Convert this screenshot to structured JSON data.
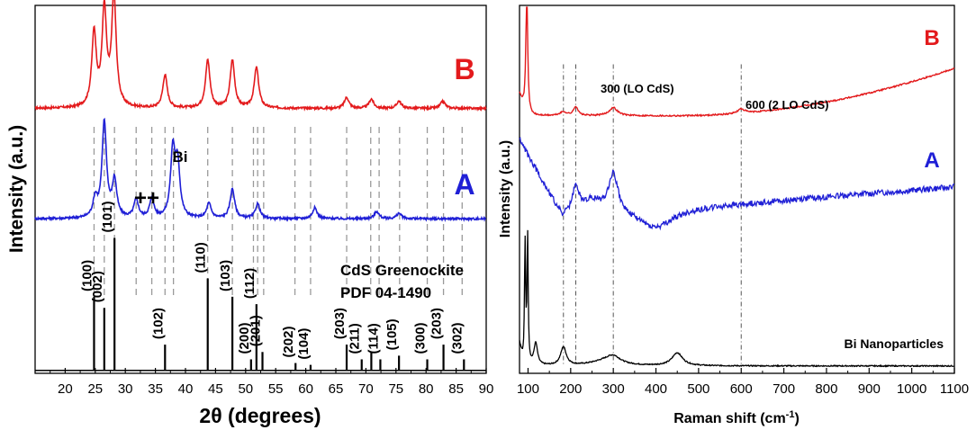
{
  "chart_data": [
    {
      "type": "line",
      "panel": "left",
      "title": "",
      "xlabel": "2θ (degrees)",
      "ylabel": "Intensity (a.u.)",
      "xlim": [
        15,
        90
      ],
      "xticks": [
        20,
        25,
        30,
        35,
        40,
        45,
        50,
        55,
        60,
        65,
        70,
        75,
        80,
        85,
        90
      ],
      "series": [
        {
          "name": "B",
          "color": "#e31a1c",
          "baseline": 0.72,
          "peaks": [
            [
              24.8,
              0.2
            ],
            [
              26.5,
              0.26
            ],
            [
              28.1,
              0.3
            ],
            [
              36.6,
              0.09
            ],
            [
              43.7,
              0.13
            ],
            [
              47.8,
              0.13
            ],
            [
              51.8,
              0.11
            ],
            [
              66.8,
              0.03
            ],
            [
              70.9,
              0.025
            ],
            [
              75.5,
              0.02
            ],
            [
              82.8,
              0.02
            ]
          ]
        },
        {
          "name": "A",
          "color": "#1f1fd6",
          "baseline": 0.42,
          "peaks": [
            [
              25.0,
              0.05
            ],
            [
              26.5,
              0.26
            ],
            [
              28.2,
              0.1
            ],
            [
              31.8,
              0.05
            ],
            [
              34.4,
              0.05
            ],
            [
              37.9,
              0.18
            ],
            [
              38.7,
              0.14
            ],
            [
              43.9,
              0.04
            ],
            [
              47.8,
              0.08
            ],
            [
              52.0,
              0.04
            ],
            [
              61.5,
              0.03
            ],
            [
              71.8,
              0.02
            ],
            [
              75.5,
              0.015
            ]
          ]
        },
        {
          "name": "CdS Greenockite PDF 04-1490",
          "color": "#000000",
          "type": "stick",
          "sticks": [
            [
              24.8,
              0.2
            ],
            [
              26.5,
              0.17
            ],
            [
              28.2,
              0.36
            ],
            [
              36.6,
              0.07
            ],
            [
              43.7,
              0.25
            ],
            [
              47.8,
              0.2
            ],
            [
              50.9,
              0.03
            ],
            [
              51.8,
              0.18
            ],
            [
              52.8,
              0.05
            ],
            [
              58.3,
              0.02
            ],
            [
              60.8,
              0.015
            ],
            [
              66.8,
              0.07
            ],
            [
              69.3,
              0.03
            ],
            [
              70.9,
              0.05
            ],
            [
              72.4,
              0.03
            ],
            [
              75.5,
              0.04
            ],
            [
              80.2,
              0.03
            ],
            [
              82.9,
              0.07
            ],
            [
              86.3,
              0.03
            ]
          ]
        }
      ],
      "reference_lines": [
        24.8,
        26.5,
        28.2,
        31.8,
        34.4,
        36.6,
        38.0,
        43.7,
        47.8,
        51.3,
        52.0,
        53.0,
        58.2,
        60.8,
        66.8,
        70.8,
        72.2,
        75.6,
        80.2,
        82.9,
        86.0
      ],
      "hkl_labels": [
        {
          "x": 24.8,
          "label": "(100)"
        },
        {
          "x": 26.5,
          "label": "(002)"
        },
        {
          "x": 28.2,
          "label": "(101)"
        },
        {
          "x": 36.6,
          "label": "(102)"
        },
        {
          "x": 43.7,
          "label": "(110)"
        },
        {
          "x": 47.8,
          "label": "(103)"
        },
        {
          "x": 50.9,
          "label": "(200)"
        },
        {
          "x": 51.8,
          "label": "(112)"
        },
        {
          "x": 52.8,
          "label": "(201)"
        },
        {
          "x": 58.3,
          "label": "(202)"
        },
        {
          "x": 60.8,
          "label": "(104)"
        },
        {
          "x": 66.8,
          "label": "(203)"
        },
        {
          "x": 69.3,
          "label": "(211)"
        },
        {
          "x": 72.4,
          "label": "(114)"
        },
        {
          "x": 75.5,
          "label": "(105)"
        },
        {
          "x": 80.2,
          "label": "(300)"
        },
        {
          "x": 82.9,
          "label": "(203)"
        },
        {
          "x": 86.3,
          "label": "(302)"
        }
      ],
      "annotations": {
        "label_B": "B",
        "label_A": "A",
        "bi": "Bi",
        "plusplus": "++",
        "ref_line1": "CdS Greenockite",
        "ref_line2": "PDF 04-1490"
      }
    },
    {
      "type": "line",
      "panel": "right",
      "title": "",
      "xlabel_main": "Raman shift (cm",
      "xlabel_sup": "-1",
      "xlabel_end": ")",
      "ylabel": "Intensity (a.u.)",
      "xlim": [
        80,
        1100
      ],
      "xticks": [
        100,
        200,
        300,
        400,
        500,
        600,
        700,
        800,
        900,
        1000,
        1100
      ],
      "series": [
        {
          "name": "B",
          "color": "#e31a1c"
        },
        {
          "name": "A",
          "color": "#1f1fd6"
        },
        {
          "name": "Bi Nanoparticles",
          "color": "#000000"
        }
      ],
      "reference_lines": [
        183,
        212,
        300,
        600
      ],
      "annotations": {
        "label_B": "B",
        "label_A": "A",
        "lo1": "300 (LO CdS)",
        "lo2": "600 (2 LO CdS)",
        "bi_np": "Bi Nanoparticles"
      }
    }
  ]
}
